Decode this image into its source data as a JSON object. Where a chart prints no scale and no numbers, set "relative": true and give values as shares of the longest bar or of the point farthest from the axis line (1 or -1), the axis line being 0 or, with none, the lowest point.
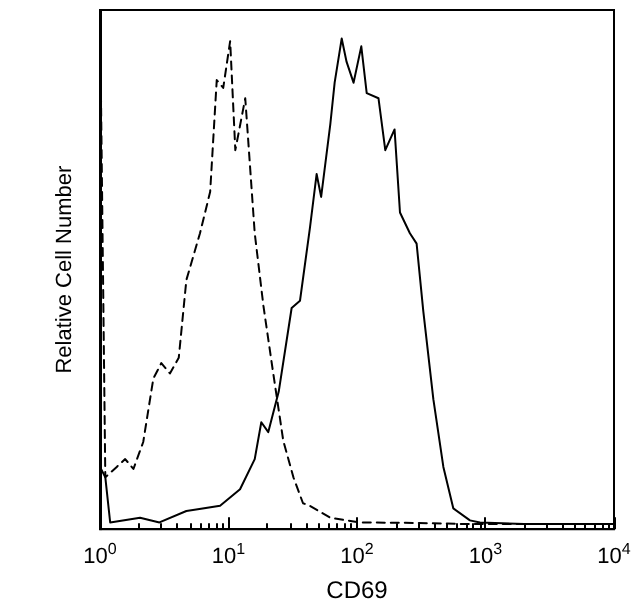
{
  "chart_data": {
    "type": "line",
    "relative": true,
    "xlabel": "CD69",
    "ylabel": "Relative Cell Number",
    "log": "x",
    "xlim": [
      1,
      10000
    ],
    "xticks": [
      {
        "value": 1,
        "label": "10$^{0}$"
      },
      {
        "value": 10,
        "label": "10$^{1}$"
      },
      {
        "value": 100,
        "label": "10$^{2}$"
      },
      {
        "value": 1000,
        "label": "10$^{3}$"
      },
      {
        "value": 10000,
        "label": "10$^{4}$"
      }
    ],
    "tick_labels": "x",
    "grid": false,
    "marker": "none",
    "series": [
      {
        "color": "#000000",
        "line_style": "dashed",
        "x": [
          1,
          1.1,
          1.35,
          1.57,
          1.82,
          2.17,
          2.6,
          3.0,
          3.5,
          4.1,
          4.7,
          6.0,
          7.2,
          8.1,
          9.1,
          10.3,
          11.3,
          13.5,
          16,
          18.7,
          22.3,
          26.7,
          32,
          38,
          43,
          62,
          105,
          300,
          700,
          2000,
          10000
        ],
        "values": [
          1.0,
          0.1,
          0.12,
          0.135,
          0.116,
          0.168,
          0.29,
          0.32,
          0.3,
          0.33,
          0.48,
          0.57,
          0.65,
          0.865,
          0.85,
          0.94,
          0.73,
          0.83,
          0.57,
          0.43,
          0.3,
          0.17,
          0.1,
          0.05,
          0.045,
          0.022,
          0.013,
          0.012,
          0.01,
          0.01,
          0.01
        ]
      },
      {
        "color": "#000000",
        "line_style": "solid",
        "x": [
          1,
          1.1,
          1.2,
          2.05,
          2.9,
          4.7,
          8.6,
          12.3,
          16,
          18,
          20.4,
          24.6,
          31,
          36,
          43,
          48.5,
          52.6,
          62,
          67,
          76,
          83,
          94,
          108,
          119,
          147,
          166,
          196,
          216,
          258,
          291,
          328,
          393,
          470,
          562,
          757,
          906,
          2000,
          10000
        ],
        "values": [
          0.12,
          0.1,
          0.013,
          0.022,
          0.013,
          0.035,
          0.045,
          0.077,
          0.135,
          0.206,
          0.187,
          0.265,
          0.426,
          0.44,
          0.58,
          0.684,
          0.64,
          0.78,
          0.86,
          0.945,
          0.9,
          0.86,
          0.93,
          0.84,
          0.83,
          0.73,
          0.77,
          0.61,
          0.57,
          0.55,
          0.42,
          0.25,
          0.12,
          0.04,
          0.017,
          0.013,
          0.01,
          0.01
        ]
      }
    ]
  }
}
